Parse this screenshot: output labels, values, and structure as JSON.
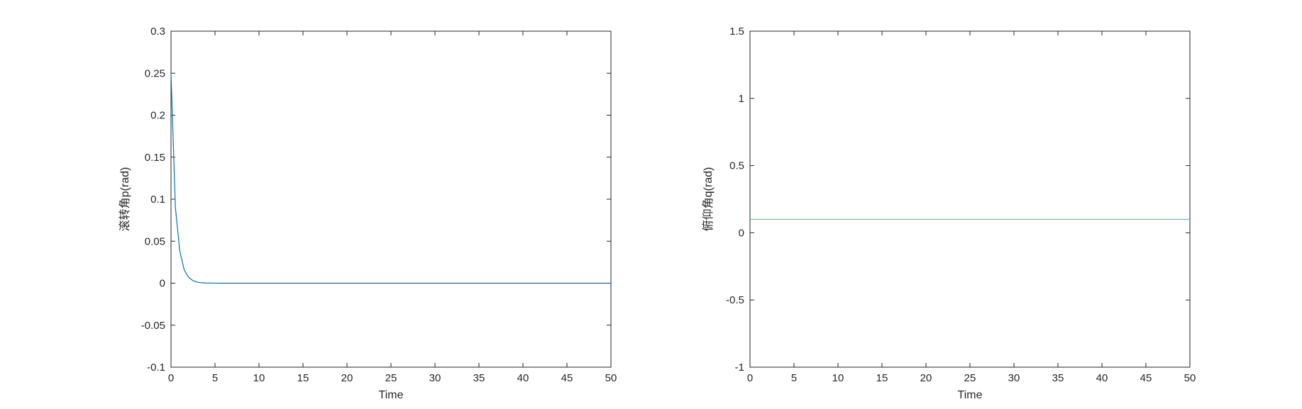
{
  "chart_data": [
    {
      "type": "line",
      "xlabel": "Time",
      "ylabel": "滚转角p(rad)",
      "xlim": [
        0,
        50
      ],
      "ylim": [
        -0.1,
        0.3
      ],
      "xticks": [
        0,
        5,
        10,
        15,
        20,
        25,
        30,
        35,
        40,
        45,
        50
      ],
      "xtick_labels": [
        "0",
        "5",
        "10",
        "15",
        "20",
        "25",
        "30",
        "35",
        "40",
        "45",
        "50"
      ],
      "yticks": [
        -0.1,
        -0.05,
        0,
        0.05,
        0.1,
        0.15,
        0.2,
        0.25,
        0.3
      ],
      "ytick_labels": [
        "-0.1",
        "-0.05",
        "0",
        "0.05",
        "0.1",
        "0.15",
        "0.2",
        "0.25",
        "0.3"
      ],
      "grid": false,
      "series": [
        {
          "color": "#0072bd",
          "x": [
            0,
            0.5,
            1,
            1.5,
            2,
            2.5,
            3,
            3.5,
            4,
            5,
            6,
            8,
            10,
            15,
            20,
            25,
            30,
            35,
            40,
            45,
            50
          ],
          "y": [
            0.25,
            0.09,
            0.038,
            0.016,
            0.007,
            0.003,
            0.0012,
            0.0005,
            0.0002,
            5e-05,
            0,
            0,
            0,
            0,
            0,
            0,
            0,
            0,
            0,
            0,
            0
          ]
        }
      ]
    },
    {
      "type": "line",
      "xlabel": "Time",
      "ylabel": "俯仰角q(rad)",
      "xlim": [
        0,
        50
      ],
      "ylim": [
        -1,
        1.5
      ],
      "xticks": [
        0,
        5,
        10,
        15,
        20,
        25,
        30,
        35,
        40,
        45,
        50
      ],
      "xtick_labels": [
        "0",
        "5",
        "10",
        "15",
        "20",
        "25",
        "30",
        "35",
        "40",
        "45",
        "50"
      ],
      "yticks": [
        -1,
        -0.5,
        0,
        0.5,
        1,
        1.5
      ],
      "ytick_labels": [
        "-1",
        "-0.5",
        "0",
        "0.5",
        "1",
        "1.5"
      ],
      "grid": false,
      "series": [
        {
          "color": "#4dbeee",
          "x": [
            0,
            50
          ],
          "y": [
            0.1,
            0.1
          ]
        }
      ]
    }
  ]
}
